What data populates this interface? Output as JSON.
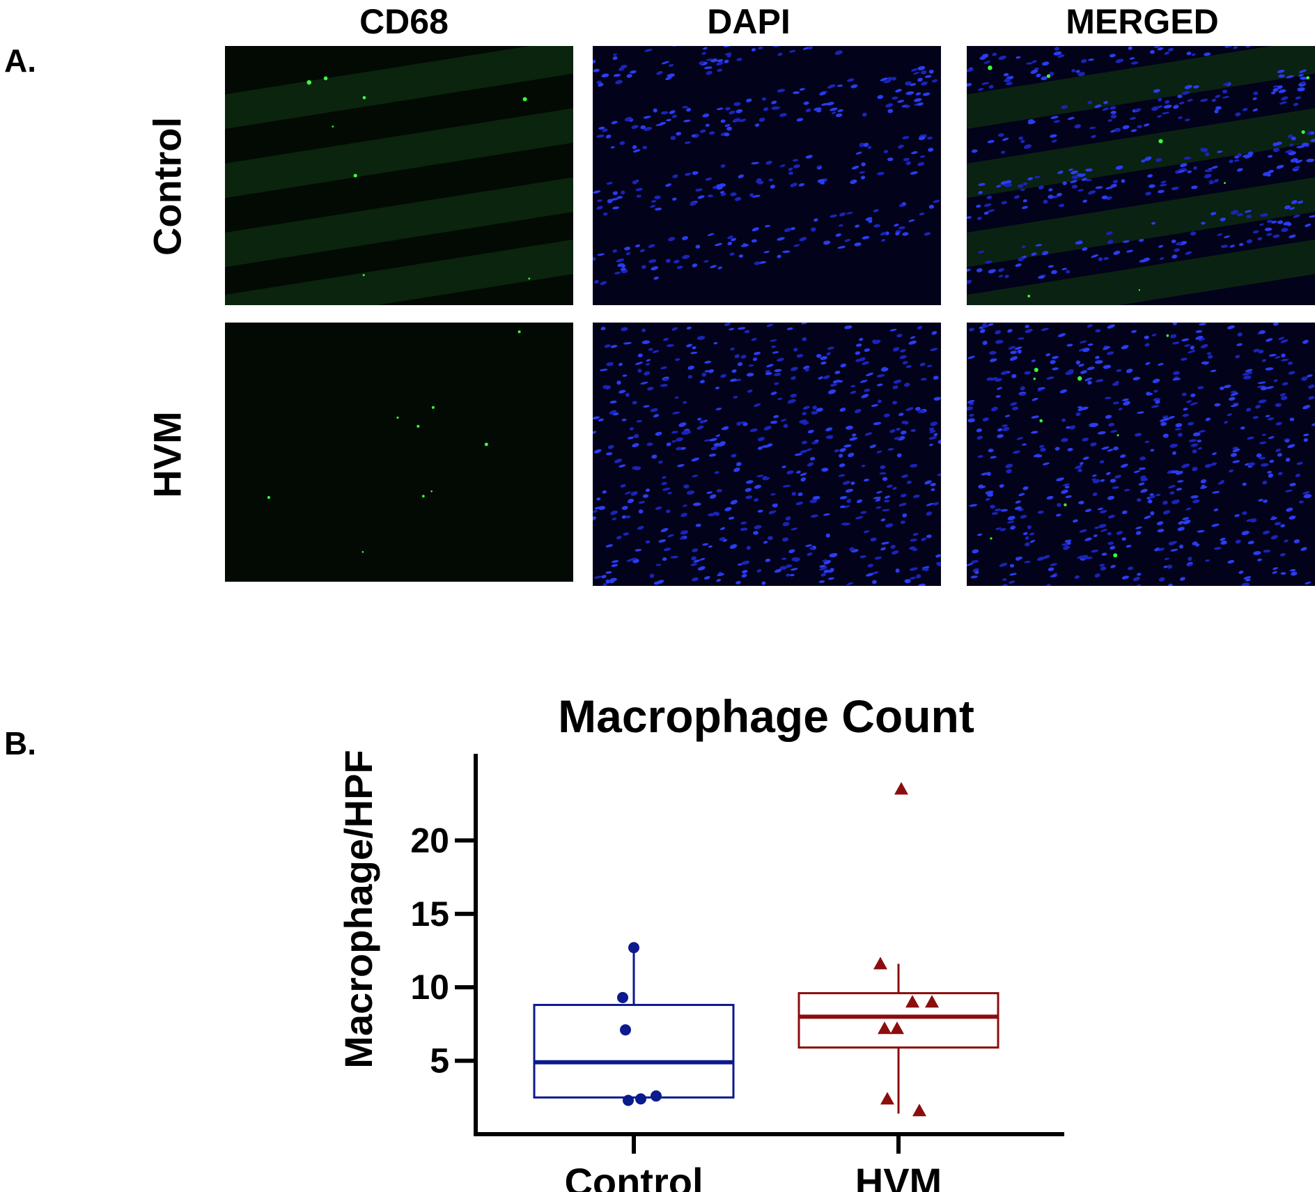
{
  "panel_a_label": "A.",
  "panel_b_label": "B.",
  "columns": [
    "CD68",
    "DAPI",
    "MERGED"
  ],
  "rows": [
    "Control",
    "HVM"
  ],
  "chart_data": {
    "type": "box",
    "title": "Macrophage Count",
    "xlabel": "",
    "ylabel": "Macrophage/HPF",
    "categories": [
      "Control",
      "HVM"
    ],
    "yticks": [
      5,
      10,
      15,
      20
    ],
    "ylim": [
      0,
      24
    ],
    "grid": false,
    "series": [
      {
        "name": "Control",
        "color": "#0b1a8c",
        "marker": "circle",
        "box": {
          "q1": 2.5,
          "median": 4.9,
          "q3": 8.8,
          "whisker_low": 2.5,
          "whisker_high": 12.7
        },
        "points": [
          12.7,
          9.3,
          7.1,
          2.6,
          2.3,
          2.4
        ]
      },
      {
        "name": "HVM",
        "color": "#8b0d0d",
        "marker": "triangle",
        "box": {
          "q1": 5.9,
          "median": 8.0,
          "q3": 9.6,
          "whisker_low": 1.4,
          "whisker_high": 11.6
        },
        "points": [
          23.5,
          11.6,
          9.0,
          9.0,
          7.2,
          7.2,
          2.4,
          1.6
        ]
      }
    ]
  }
}
